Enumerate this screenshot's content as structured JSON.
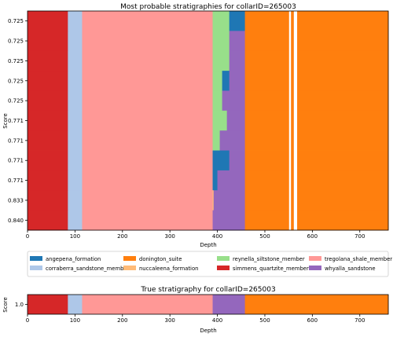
{
  "chart_data": [
    {
      "type": "bar",
      "orientation": "horizontal-stacked",
      "title": "Most probable stratigraphies for collarID=265003",
      "xlabel": "Depth",
      "ylabel": "Score",
      "xlim": [
        0,
        760
      ],
      "xticks": [
        "0",
        "100",
        "200",
        "300",
        "400",
        "500",
        "600",
        "700"
      ],
      "categories": [
        "0.725",
        "0.725",
        "0.725",
        "0.725",
        "0.725",
        "0.771",
        "0.771",
        "0.771",
        "0.771",
        "0.833",
        "0.840"
      ],
      "rows": [
        [
          [
            0,
            85,
            "simmens_quartzite_member"
          ],
          [
            85,
            115,
            "corraberra_sandstone_member"
          ],
          [
            115,
            390,
            "tregolana_shale_member"
          ],
          [
            390,
            425,
            "reynella_siltstone_member"
          ],
          [
            425,
            458,
            "angepena_formation"
          ],
          [
            458,
            760,
            "donington_suite"
          ]
        ],
        [
          [
            0,
            85,
            "simmens_quartzite_member"
          ],
          [
            85,
            115,
            "corraberra_sandstone_member"
          ],
          [
            115,
            390,
            "tregolana_shale_member"
          ],
          [
            390,
            425,
            "reynella_siltstone_member"
          ],
          [
            425,
            458,
            "whyalla_sandstone"
          ],
          [
            458,
            760,
            "donington_suite"
          ]
        ],
        [
          [
            0,
            85,
            "simmens_quartzite_member"
          ],
          [
            85,
            115,
            "corraberra_sandstone_member"
          ],
          [
            115,
            390,
            "tregolana_shale_member"
          ],
          [
            390,
            425,
            "reynella_siltstone_member"
          ],
          [
            425,
            458,
            "whyalla_sandstone"
          ],
          [
            458,
            760,
            "donington_suite"
          ]
        ],
        [
          [
            0,
            85,
            "simmens_quartzite_member"
          ],
          [
            85,
            115,
            "corraberra_sandstone_member"
          ],
          [
            115,
            390,
            "tregolana_shale_member"
          ],
          [
            390,
            410,
            "reynella_siltstone_member"
          ],
          [
            410,
            425,
            "angepena_formation"
          ],
          [
            425,
            458,
            "whyalla_sandstone"
          ],
          [
            458,
            760,
            "donington_suite"
          ]
        ],
        [
          [
            0,
            85,
            "simmens_quartzite_member"
          ],
          [
            85,
            115,
            "corraberra_sandstone_member"
          ],
          [
            115,
            390,
            "tregolana_shale_member"
          ],
          [
            390,
            410,
            "reynella_siltstone_member"
          ],
          [
            410,
            425,
            "whyalla_sandstone"
          ],
          [
            425,
            458,
            "whyalla_sandstone"
          ],
          [
            458,
            760,
            "donington_suite"
          ]
        ],
        [
          [
            0,
            85,
            "simmens_quartzite_member"
          ],
          [
            85,
            115,
            "corraberra_sandstone_member"
          ],
          [
            115,
            390,
            "tregolana_shale_member"
          ],
          [
            390,
            420,
            "reynella_siltstone_member"
          ],
          [
            420,
            458,
            "whyalla_sandstone"
          ],
          [
            458,
            760,
            "donington_suite"
          ]
        ],
        [
          [
            0,
            85,
            "simmens_quartzite_member"
          ],
          [
            85,
            115,
            "corraberra_sandstone_member"
          ],
          [
            115,
            390,
            "tregolana_shale_member"
          ],
          [
            390,
            405,
            "reynella_siltstone_member"
          ],
          [
            405,
            458,
            "whyalla_sandstone"
          ],
          [
            458,
            760,
            "donington_suite"
          ]
        ],
        [
          [
            0,
            85,
            "simmens_quartzite_member"
          ],
          [
            85,
            115,
            "corraberra_sandstone_member"
          ],
          [
            115,
            390,
            "tregolana_shale_member"
          ],
          [
            390,
            400,
            "angepena_formation"
          ],
          [
            400,
            425,
            "angepena_formation"
          ],
          [
            425,
            458,
            "whyalla_sandstone"
          ],
          [
            458,
            760,
            "donington_suite"
          ]
        ],
        [
          [
            0,
            85,
            "simmens_quartzite_member"
          ],
          [
            85,
            115,
            "corraberra_sandstone_member"
          ],
          [
            115,
            390,
            "tregolana_shale_member"
          ],
          [
            390,
            400,
            "angepena_formation"
          ],
          [
            400,
            458,
            "whyalla_sandstone"
          ],
          [
            458,
            760,
            "donington_suite"
          ]
        ],
        [
          [
            0,
            85,
            "simmens_quartzite_member"
          ],
          [
            85,
            115,
            "corraberra_sandstone_member"
          ],
          [
            115,
            390,
            "tregolana_shale_member"
          ],
          [
            390,
            392,
            "nuccaleena_formation"
          ],
          [
            392,
            458,
            "whyalla_sandstone"
          ],
          [
            458,
            760,
            "donington_suite"
          ]
        ],
        [
          [
            0,
            85,
            "simmens_quartzite_member"
          ],
          [
            85,
            115,
            "corraberra_sandstone_member"
          ],
          [
            115,
            390,
            "tregolana_shale_member"
          ],
          [
            390,
            458,
            "whyalla_sandstone"
          ],
          [
            458,
            760,
            "donington_suite"
          ]
        ]
      ],
      "gaps": [
        [
          551,
          555
        ],
        [
          561,
          568
        ]
      ],
      "legend_placement": "below",
      "legend": [
        "angepena_formation",
        "corraberra_sandstone_member",
        "donington_suite",
        "nuccaleena_formation",
        "reynella_siltstone_member",
        "simmens_quartzite_member",
        "tregolana_shale_member",
        "whyalla_sandstone"
      ],
      "colors": {
        "angepena_formation": "#1f77b4",
        "corraberra_sandstone_member": "#aec7e8",
        "donington_suite": "#ff7f0e",
        "nuccaleena_formation": "#ffbb78",
        "reynella_siltstone_member": "#98df8a",
        "simmens_quartzite_member": "#d62728",
        "tregolana_shale_member": "#ff9896",
        "whyalla_sandstone": "#9467bd"
      }
    },
    {
      "type": "bar",
      "orientation": "horizontal-stacked",
      "title": "True stratigraphy for collarID=265003",
      "xlabel": "Depth",
      "ylabel": "Score",
      "xlim": [
        0,
        760
      ],
      "xticks": [
        "0",
        "100",
        "200",
        "300",
        "400",
        "500",
        "600",
        "700"
      ],
      "categories": [
        "1.0"
      ],
      "rows": [
        [
          [
            0,
            85,
            "simmens_quartzite_member"
          ],
          [
            85,
            115,
            "corraberra_sandstone_member"
          ],
          [
            115,
            390,
            "tregolana_shale_member"
          ],
          [
            390,
            458,
            "whyalla_sandstone"
          ],
          [
            458,
            760,
            "donington_suite"
          ]
        ]
      ]
    }
  ]
}
